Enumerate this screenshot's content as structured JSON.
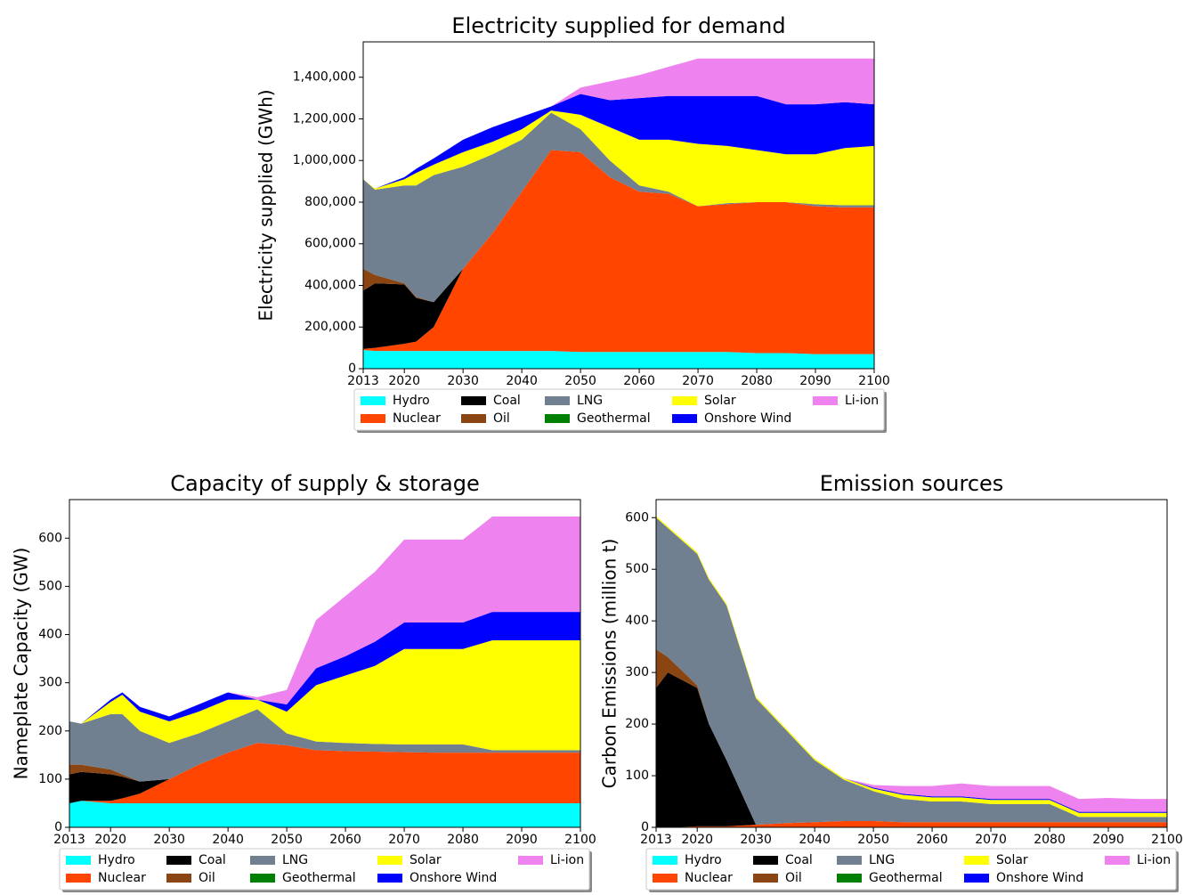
{
  "chart_data": [
    {
      "type": "area",
      "title": "Electricity supplied for demand",
      "ylabel": "Electricity supplied (GWh)",
      "x": [
        2013,
        2015,
        2020,
        2022,
        2025,
        2030,
        2035,
        2040,
        2045,
        2050,
        2055,
        2060,
        2065,
        2070,
        2075,
        2080,
        2085,
        2090,
        2095,
        2100
      ],
      "xlim": [
        2013,
        2100
      ],
      "xticks": [
        2013,
        2020,
        2030,
        2040,
        2050,
        2060,
        2070,
        2080,
        2090,
        2100
      ],
      "ylim": [
        0,
        1570000
      ],
      "yticks": [
        0,
        {
          "value": 200000,
          "label": "200,000"
        },
        {
          "value": 400000,
          "label": "400,000"
        },
        {
          "value": 600000,
          "label": "600,000"
        },
        {
          "value": 800000,
          "label": "800,000"
        },
        {
          "value": 1000000,
          "label": "1,000,000"
        },
        {
          "value": 1200000,
          "label": "1,200,000"
        },
        {
          "value": 1400000,
          "label": "1,400,000"
        }
      ],
      "series": [
        {
          "name": "Hydro",
          "color": "#00ffff",
          "values": [
            90000,
            85000,
            85000,
            85000,
            85000,
            85000,
            85000,
            85000,
            85000,
            80000,
            80000,
            80000,
            80000,
            80000,
            80000,
            75000,
            75000,
            70000,
            70000,
            70000
          ]
        },
        {
          "name": "Nuclear",
          "color": "#ff4500",
          "values": [
            5000,
            15000,
            35000,
            45000,
            115000,
            395000,
            565000,
            765000,
            965000,
            960000,
            840000,
            770000,
            760000,
            700000,
            710000,
            725000,
            725000,
            710000,
            705000,
            705000
          ]
        },
        {
          "name": "Coal",
          "color": "#000000",
          "values": [
            280000,
            310000,
            285000,
            210000,
            120000,
            0,
            0,
            0,
            0,
            0,
            0,
            0,
            0,
            0,
            0,
            0,
            0,
            0,
            0,
            0
          ]
        },
        {
          "name": "Oil",
          "color": "#8b4513",
          "values": [
            105000,
            40000,
            5000,
            5000,
            0,
            0,
            0,
            0,
            0,
            0,
            0,
            0,
            0,
            0,
            0,
            0,
            0,
            0,
            0,
            0
          ]
        },
        {
          "name": "LNG",
          "color": "#708090",
          "values": [
            430000,
            410000,
            470000,
            535000,
            610000,
            490000,
            380000,
            250000,
            180000,
            110000,
            80000,
            30000,
            10000,
            0,
            5000,
            0,
            0,
            10000,
            10000,
            10000
          ]
        },
        {
          "name": "Geothermal",
          "color": "#008000",
          "values": [
            0,
            0,
            0,
            0,
            0,
            0,
            0,
            0,
            0,
            0,
            0,
            0,
            0,
            0,
            0,
            0,
            0,
            0,
            0,
            0
          ]
        },
        {
          "name": "Solar",
          "color": "#ffff00",
          "values": [
            0,
            5000,
            30000,
            60000,
            50000,
            70000,
            60000,
            50000,
            10000,
            70000,
            160000,
            220000,
            250000,
            300000,
            275000,
            250000,
            230000,
            240000,
            275000,
            285000
          ]
        },
        {
          "name": "Onshore Wind",
          "color": "#0000ff",
          "values": [
            0,
            0,
            10000,
            20000,
            30000,
            60000,
            70000,
            60000,
            20000,
            100000,
            130000,
            200000,
            210000,
            230000,
            240000,
            260000,
            240000,
            240000,
            220000,
            200000
          ]
        },
        {
          "name": "Li-ion",
          "color": "#ee82ee",
          "values": [
            0,
            0,
            0,
            0,
            0,
            0,
            0,
            0,
            0,
            30000,
            90000,
            110000,
            140000,
            180000,
            180000,
            180000,
            220000,
            220000,
            210000,
            220000
          ]
        }
      ]
    },
    {
      "type": "area",
      "title": "Capacity of supply & storage",
      "ylabel": "Nameplate Capacity (GW)",
      "x": [
        2013,
        2015,
        2020,
        2022,
        2025,
        2030,
        2035,
        2040,
        2045,
        2050,
        2055,
        2060,
        2065,
        2070,
        2075,
        2080,
        2085,
        2090,
        2095,
        2100
      ],
      "xlim": [
        2013,
        2100
      ],
      "xticks": [
        2013,
        2020,
        2030,
        2040,
        2050,
        2060,
        2070,
        2080,
        2090,
        2100
      ],
      "ylim": [
        0,
        680
      ],
      "yticks": [
        0,
        100,
        200,
        300,
        400,
        500,
        600
      ],
      "series": [
        {
          "name": "Hydro",
          "color": "#00ffff",
          "values": [
            50,
            55,
            50,
            50,
            50,
            50,
            50,
            50,
            50,
            50,
            50,
            50,
            50,
            50,
            50,
            50,
            50,
            50,
            50,
            50
          ]
        },
        {
          "name": "Nuclear",
          "color": "#ff4500",
          "values": [
            0,
            0,
            5,
            10,
            20,
            50,
            80,
            105,
            125,
            120,
            110,
            108,
            107,
            106,
            105,
            105,
            105,
            105,
            105,
            105
          ]
        },
        {
          "name": "Coal",
          "color": "#000000",
          "values": [
            60,
            60,
            55,
            45,
            25,
            0,
            0,
            0,
            0,
            0,
            0,
            0,
            0,
            0,
            0,
            0,
            0,
            0,
            0,
            0
          ]
        },
        {
          "name": "Oil",
          "color": "#8b4513",
          "values": [
            20,
            15,
            10,
            5,
            0,
            0,
            0,
            0,
            0,
            0,
            0,
            0,
            0,
            0,
            0,
            0,
            0,
            0,
            0,
            0
          ]
        },
        {
          "name": "LNG",
          "color": "#708090",
          "values": [
            90,
            85,
            115,
            125,
            105,
            75,
            65,
            65,
            70,
            25,
            18,
            17,
            16,
            16,
            17,
            17,
            5,
            5,
            5,
            5
          ]
        },
        {
          "name": "Geothermal",
          "color": "#008000",
          "values": [
            0,
            0,
            0,
            0,
            0,
            0,
            0,
            0,
            0,
            0,
            0,
            0,
            0,
            0,
            0,
            0,
            0,
            0,
            0,
            0
          ]
        },
        {
          "name": "Solar",
          "color": "#ffff00",
          "values": [
            0,
            0,
            25,
            40,
            40,
            45,
            45,
            45,
            20,
            45,
            117,
            140,
            162,
            198,
            198,
            198,
            228,
            228,
            228,
            228
          ]
        },
        {
          "name": "Onshore Wind",
          "color": "#0000ff",
          "values": [
            0,
            0,
            5,
            5,
            10,
            10,
            15,
            15,
            0,
            15,
            35,
            40,
            50,
            55,
            55,
            55,
            59,
            59,
            59,
            59
          ]
        },
        {
          "name": "Li-ion",
          "color": "#ee82ee",
          "values": [
            0,
            0,
            0,
            0,
            0,
            0,
            0,
            0,
            5,
            30,
            100,
            125,
            145,
            172,
            172,
            172,
            198,
            198,
            198,
            198
          ]
        }
      ]
    },
    {
      "type": "area",
      "title": "Emission sources",
      "ylabel": "Carbon Emissions (million t)",
      "x": [
        2013,
        2015,
        2020,
        2022,
        2025,
        2030,
        2035,
        2040,
        2045,
        2050,
        2055,
        2060,
        2065,
        2070,
        2075,
        2080,
        2085,
        2090,
        2095,
        2100
      ],
      "xlim": [
        2013,
        2100
      ],
      "xticks": [
        2013,
        2020,
        2030,
        2040,
        2050,
        2060,
        2070,
        2080,
        2090,
        2100
      ],
      "ylim": [
        0,
        635
      ],
      "yticks": [
        0,
        100,
        200,
        300,
        400,
        500,
        600
      ],
      "series": [
        {
          "name": "Hydro",
          "color": "#00ffff",
          "values": [
            0,
            0,
            0,
            0,
            0,
            0,
            0,
            0,
            0,
            0,
            0,
            0,
            0,
            0,
            0,
            0,
            0,
            0,
            0,
            0
          ]
        },
        {
          "name": "Nuclear",
          "color": "#ff4500",
          "values": [
            0,
            0,
            2,
            2,
            2,
            5,
            8,
            10,
            12,
            12,
            10,
            10,
            10,
            10,
            10,
            10,
            10,
            10,
            10,
            10
          ]
        },
        {
          "name": "Coal",
          "color": "#000000",
          "values": [
            270,
            300,
            268,
            198,
            128,
            0,
            0,
            0,
            0,
            0,
            0,
            0,
            0,
            0,
            0,
            0,
            0,
            0,
            0,
            0
          ]
        },
        {
          "name": "Oil",
          "color": "#8b4513",
          "values": [
            75,
            30,
            5,
            0,
            0,
            0,
            0,
            0,
            0,
            0,
            0,
            0,
            0,
            0,
            0,
            0,
            0,
            0,
            0,
            0
          ]
        },
        {
          "name": "LNG",
          "color": "#708090",
          "values": [
            255,
            250,
            255,
            280,
            300,
            245,
            182,
            120,
            80,
            58,
            45,
            40,
            40,
            35,
            35,
            35,
            10,
            10,
            10,
            10
          ]
        },
        {
          "name": "Geothermal",
          "color": "#008000",
          "values": [
            0,
            0,
            0,
            0,
            0,
            0,
            0,
            0,
            0,
            0,
            0,
            0,
            0,
            0,
            0,
            0,
            0,
            0,
            0,
            0
          ]
        },
        {
          "name": "Solar",
          "color": "#ffff00",
          "values": [
            3,
            3,
            3,
            3,
            3,
            3,
            3,
            3,
            3,
            5,
            8,
            8,
            8,
            8,
            8,
            8,
            8,
            8,
            8,
            8
          ]
        },
        {
          "name": "Onshore Wind",
          "color": "#0000ff",
          "values": [
            0,
            0,
            0,
            0,
            0,
            0,
            0,
            0,
            0,
            2,
            2,
            2,
            2,
            2,
            2,
            2,
            2,
            2,
            2,
            2
          ]
        },
        {
          "name": "Li-ion",
          "color": "#ee82ee",
          "values": [
            0,
            0,
            0,
            0,
            0,
            0,
            0,
            0,
            0,
            5,
            15,
            20,
            25,
            25,
            25,
            25,
            25,
            27,
            25,
            25
          ]
        }
      ]
    }
  ]
}
